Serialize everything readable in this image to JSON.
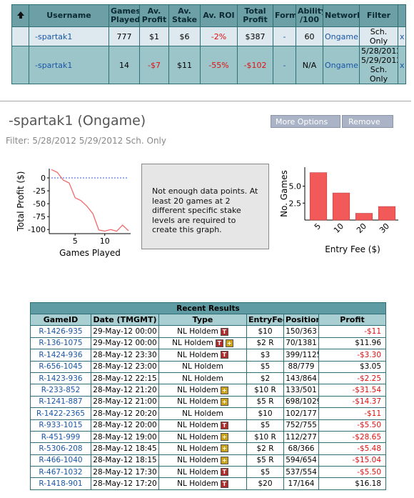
{
  "top_table": {
    "headers": [
      "Username",
      "Games Played",
      "Av. Profit",
      "Av. Stake",
      "Av. ROI",
      "Total Profit",
      "Form",
      "Ability /100",
      "Network",
      "Filter"
    ],
    "rows": [
      [
        "-spartak1",
        "777",
        "$1",
        "$6",
        "-2%",
        "$387",
        "-",
        "60",
        "Ongame",
        "Sch. Only"
      ],
      [
        "-spartak1",
        "14",
        "-$7",
        "$11",
        "-55%",
        "-$102",
        "-",
        "N/A",
        "Ongame",
        "5/28/2012 5/29/2012 Sch. Only"
      ]
    ],
    "remove": "x"
  },
  "profile": {
    "title": "-spartak1 (Ongame)",
    "filter": "Filter: 5/28/2012 5/29/2012 Sch. Only",
    "buttons": [
      "More Options",
      "Remove"
    ]
  },
  "profit_chart": {
    "type": "line",
    "x_label": "Games Played",
    "y_label": "Total Profit ($)",
    "x": [
      1,
      2,
      3,
      4,
      5,
      6,
      7,
      8,
      9,
      10,
      11,
      12,
      13,
      14
    ],
    "values": [
      16.18,
      10.68,
      -4.36,
      -9.84,
      -38.49,
      -43.99,
      -54.99,
      -69.36,
      -100.9,
      -103.15,
      -100.1,
      -103.4,
      -91.44,
      -102.44
    ],
    "xlim": [
      1,
      14
    ],
    "ylim": [
      -108,
      18
    ],
    "xticks": [
      5,
      10
    ],
    "yticks": [
      0,
      -25,
      -50,
      -75,
      -100
    ],
    "color": "#f26b6b",
    "zero_line": true
  },
  "notice": "Not enough data points. At least 20 games at 2 different specific stake levels are required to create this graph.",
  "fee_chart": {
    "type": "bar",
    "x_label": "Entry Fee ($)",
    "y_label": "No. Games",
    "categories": [
      "5",
      "10",
      "20",
      "30"
    ],
    "values": [
      7,
      4,
      1,
      2
    ],
    "ylim": [
      0,
      7.8
    ],
    "yticks": [
      2.5,
      {
        "value": 5,
        "label": "5.0"
      }
    ],
    "color": "#f25a5a"
  },
  "results": {
    "title": "Recent Results",
    "headers": [
      "GameID",
      "Date (TMGMT)",
      "Type",
      "EntryFee",
      "Position",
      "Profit"
    ],
    "rows": [
      [
        "R-1426-935",
        "29-May-12 00:00",
        "NL Holdem",
        "$10",
        "150/363",
        "-$11"
      ],
      [
        "R-136-1075",
        "29-May-12 00:00",
        "NL Holdem",
        "$2 R",
        "70/1381",
        "$11.96"
      ],
      [
        "R-1424-936",
        "28-May-12 23:30",
        "NL Holdem",
        "$3",
        "399/1125",
        "-$3.30"
      ],
      [
        "R-656-1045",
        "28-May-12 23:00",
        "NL Holdem",
        "$5",
        "88/779",
        "$3.05"
      ],
      [
        "R-1423-936",
        "28-May-12 22:15",
        "NL Holdem",
        "$2",
        "143/864",
        "-$2.25"
      ],
      [
        "R-233-852",
        "28-May-12 21:20",
        "NL Holdem",
        "$10 R",
        "133/501",
        "-$31.54"
      ],
      [
        "R-1241-887",
        "28-May-12 21:00",
        "NL Holdem",
        "$5 R",
        "698/1029",
        "-$14.37"
      ],
      [
        "R-1422-2365",
        "28-May-12 20:20",
        "NL Holdem",
        "$10",
        "102/177",
        "-$11"
      ],
      [
        "R-933-1015",
        "28-May-12 20:00",
        "NL Holdem",
        "$5",
        "752/755",
        "-$5.50"
      ],
      [
        "R-451-999",
        "28-May-12 19:00",
        "NL Holdem",
        "$10 R",
        "112/277",
        "-$28.65"
      ],
      [
        "R-5306-208",
        "28-May-12 18:45",
        "NL Holdem",
        "$2 R",
        "68/366",
        "-$5.48"
      ],
      [
        "R-466-1040",
        "28-May-12 18:15",
        "NL Holdem",
        "$5 R",
        "594/654",
        "-$15.04"
      ],
      [
        "R-467-1032",
        "28-May-12 17:30",
        "NL Holdem",
        "$5",
        "537/554",
        "-$5.50"
      ],
      [
        "R-1418-901",
        "28-May-12 17:20",
        "NL Holdem",
        "$20",
        "17/164",
        "$16.18"
      ]
    ],
    "badges": [
      [
        "T"
      ],
      [
        "T",
        "+"
      ],
      [
        "T"
      ],
      [],
      [],
      [
        "+"
      ],
      [
        "+"
      ],
      [],
      [
        "T"
      ],
      [
        "+"
      ],
      [
        "+"
      ],
      [
        "+"
      ],
      [
        "T"
      ],
      [
        "T"
      ]
    ]
  }
}
